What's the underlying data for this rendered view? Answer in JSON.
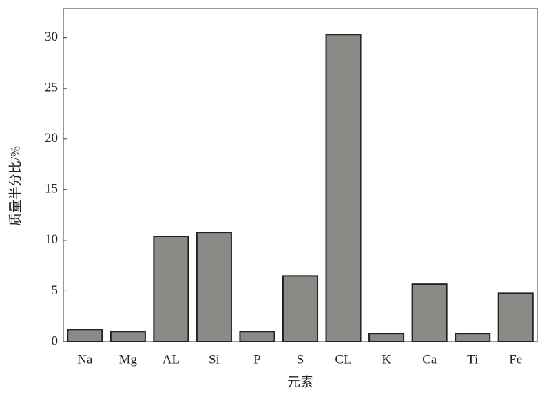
{
  "chart_data": {
    "type": "bar",
    "x_label": "元素",
    "y_label": "质量半分比/%",
    "categories": [
      "Na",
      "Mg",
      "AL",
      "Si",
      "P",
      "S",
      "CL",
      "K",
      "Ca",
      "Ti",
      "Fe"
    ],
    "values": [
      1.2,
      1.0,
      10.4,
      10.8,
      1.0,
      6.5,
      30.3,
      0.8,
      5.7,
      0.8,
      4.8
    ],
    "color": "#8c8a87",
    "ylim": [
      0,
      32.9
    ],
    "yticks": [
      0,
      5,
      10,
      15,
      20,
      25,
      30
    ],
    "grid": false
  }
}
